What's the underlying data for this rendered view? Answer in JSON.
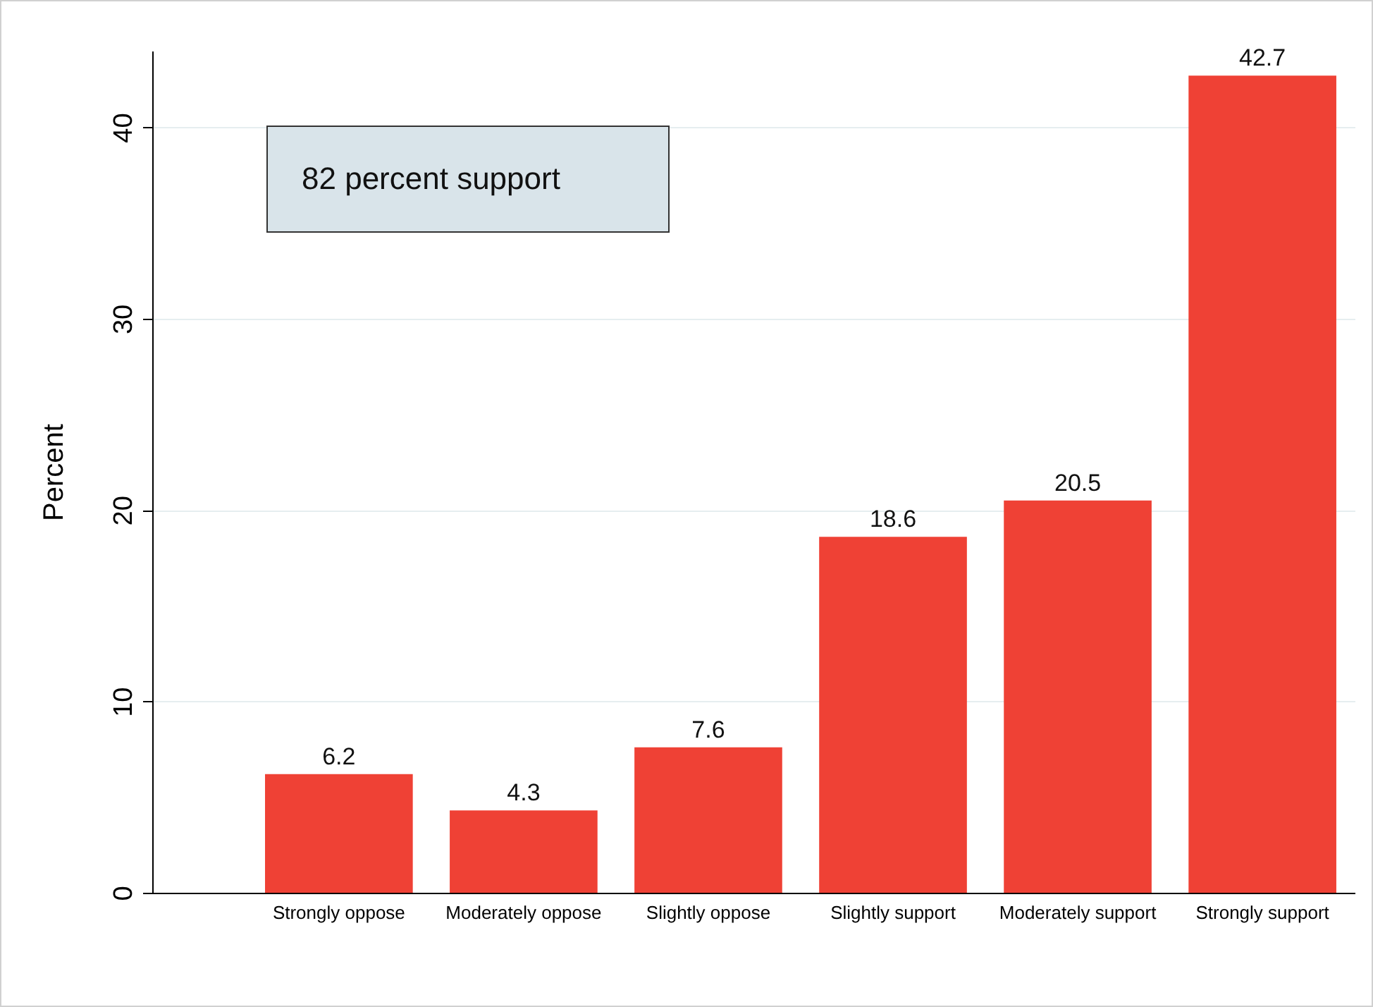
{
  "chart_data": {
    "type": "bar",
    "ylabel": "Percent",
    "annotations": [
      "82 percent support"
    ],
    "categories": [
      "Strongly oppose",
      "Moderately oppose",
      "Slightly oppose",
      "Slightly support",
      "Moderately support",
      "Strongly support"
    ],
    "values": [
      6.2,
      4.3,
      7.6,
      18.6,
      20.5,
      42.7
    ],
    "color": "#ef4135",
    "ylim": [
      0,
      44
    ],
    "yticks": [
      0,
      10,
      20,
      30,
      40
    ],
    "grid": "y",
    "data_labels": true
  }
}
